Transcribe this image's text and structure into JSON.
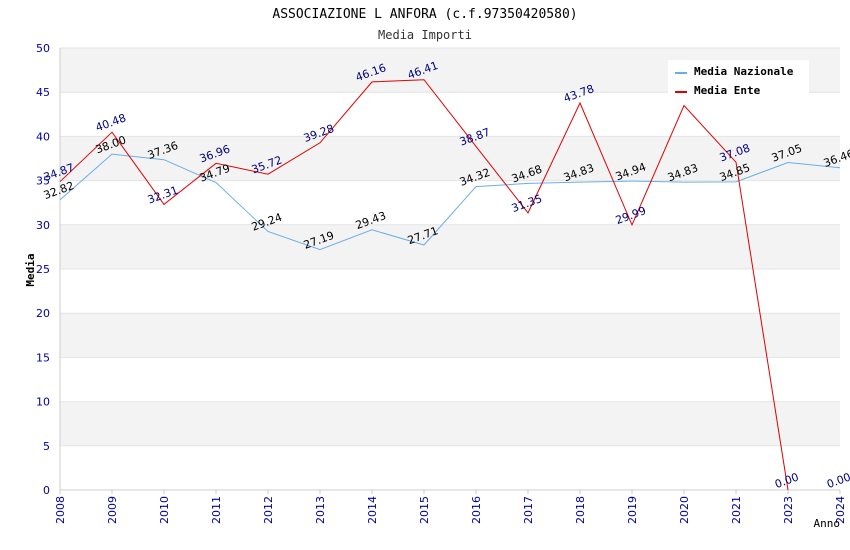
{
  "chart_data": {
    "type": "line",
    "title": "ASSOCIAZIONE L ANFORA (c.f.97350420580)",
    "subtitle": "Media Importi",
    "xlabel": "Anno",
    "ylabel": "Media",
    "ylim": [
      0,
      50
    ],
    "yticks": [
      "0",
      "5",
      "10",
      "15",
      "20",
      "25",
      "30",
      "35",
      "40",
      "45",
      "50"
    ],
    "categories": [
      "2008",
      "2009",
      "2010",
      "2011",
      "2012",
      "2013",
      "2014",
      "2015",
      "2016",
      "2017",
      "2018",
      "2019",
      "2020",
      "2021",
      "2023",
      "2024"
    ],
    "grid": true,
    "legend_position": "top-right",
    "series": [
      {
        "name": "Media Nazionale",
        "color": "#6aaee6",
        "label_color": "#000000",
        "values": [
          32.82,
          38.0,
          37.36,
          34.79,
          29.24,
          27.19,
          29.43,
          27.71,
          34.32,
          34.68,
          34.83,
          34.94,
          34.83,
          34.85,
          37.05,
          36.46
        ],
        "labels": [
          "32.82",
          "38.00",
          "37.36",
          "34.79",
          "29.24",
          "27.19",
          "29.43",
          "27.71",
          "34.32",
          "34.68",
          "34.83",
          "34.94",
          "34.83",
          "34.85",
          "37.05",
          "36.46"
        ]
      },
      {
        "name": "Media Ente",
        "color": "#e00000",
        "label_color": "#000080",
        "values": [
          34.87,
          40.48,
          32.31,
          36.96,
          35.72,
          39.28,
          46.16,
          46.41,
          38.87,
          31.35,
          43.78,
          29.99,
          43.5,
          37.08,
          0.0,
          0.0
        ],
        "labels": [
          "34.87",
          "40.48",
          "32.31",
          "36.96",
          "35.72",
          "39.28",
          "46.16",
          "46.41",
          "38.87",
          "31.35",
          "43.78",
          "29.99",
          "",
          "37.08",
          "0.00",
          "0.00"
        ],
        "line_points": 15
      }
    ]
  }
}
